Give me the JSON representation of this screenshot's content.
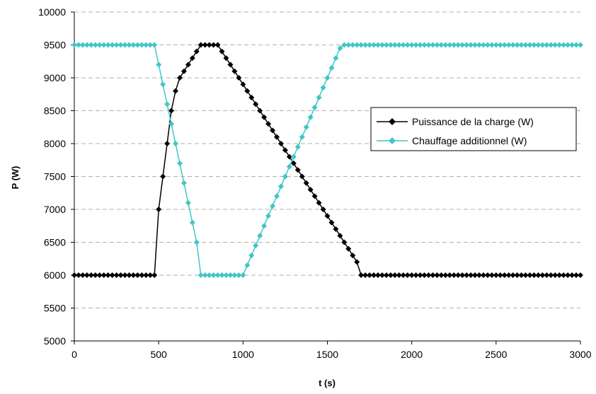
{
  "chart_data": {
    "type": "line",
    "title": "",
    "xlabel": "t (s)",
    "ylabel": "P (W)",
    "xlim": [
      0,
      3000
    ],
    "ylim": [
      5000,
      10000
    ],
    "x_ticks": [
      0,
      500,
      1000,
      1500,
      2000,
      2500,
      3000
    ],
    "y_ticks": [
      5000,
      5500,
      6000,
      6500,
      7000,
      7500,
      8000,
      8500,
      9000,
      9500,
      10000
    ],
    "grid": "horizontal dashed",
    "legend_position": "right",
    "series": [
      {
        "name": "Puissance de la charge (W)",
        "color": "#000000",
        "marker": "diamond",
        "points": [
          [
            0,
            6000
          ],
          [
            25,
            6000
          ],
          [
            50,
            6000
          ],
          [
            75,
            6000
          ],
          [
            100,
            6000
          ],
          [
            125,
            6000
          ],
          [
            150,
            6000
          ],
          [
            175,
            6000
          ],
          [
            200,
            6000
          ],
          [
            225,
            6000
          ],
          [
            250,
            6000
          ],
          [
            275,
            6000
          ],
          [
            300,
            6000
          ],
          [
            325,
            6000
          ],
          [
            350,
            6000
          ],
          [
            375,
            6000
          ],
          [
            400,
            6000
          ],
          [
            425,
            6000
          ],
          [
            450,
            6000
          ],
          [
            475,
            6000
          ],
          [
            500,
            7000
          ],
          [
            525,
            7500
          ],
          [
            550,
            8000
          ],
          [
            575,
            8500
          ],
          [
            600,
            8800
          ],
          [
            625,
            9000
          ],
          [
            650,
            9100
          ],
          [
            675,
            9200
          ],
          [
            700,
            9300
          ],
          [
            725,
            9400
          ],
          [
            750,
            9500
          ],
          [
            775,
            9500
          ],
          [
            800,
            9500
          ],
          [
            825,
            9500
          ],
          [
            850,
            9500
          ],
          [
            875,
            9400
          ],
          [
            900,
            9300
          ],
          [
            925,
            9200
          ],
          [
            950,
            9100
          ],
          [
            975,
            9000
          ],
          [
            1000,
            8900
          ],
          [
            1025,
            8800
          ],
          [
            1050,
            8700
          ],
          [
            1075,
            8600
          ],
          [
            1100,
            8500
          ],
          [
            1125,
            8400
          ],
          [
            1150,
            8300
          ],
          [
            1175,
            8200
          ],
          [
            1200,
            8100
          ],
          [
            1225,
            8000
          ],
          [
            1250,
            7900
          ],
          [
            1275,
            7800
          ],
          [
            1300,
            7700
          ],
          [
            1325,
            7600
          ],
          [
            1350,
            7500
          ],
          [
            1375,
            7400
          ],
          [
            1400,
            7300
          ],
          [
            1425,
            7200
          ],
          [
            1450,
            7100
          ],
          [
            1475,
            7000
          ],
          [
            1500,
            6900
          ],
          [
            1525,
            6800
          ],
          [
            1550,
            6700
          ],
          [
            1575,
            6600
          ],
          [
            1600,
            6500
          ],
          [
            1625,
            6400
          ],
          [
            1650,
            6300
          ],
          [
            1675,
            6200
          ],
          [
            1700,
            6000
          ],
          [
            1725,
            6000
          ],
          [
            1750,
            6000
          ],
          [
            1775,
            6000
          ],
          [
            1800,
            6000
          ],
          [
            1825,
            6000
          ],
          [
            1850,
            6000
          ],
          [
            1875,
            6000
          ],
          [
            1900,
            6000
          ],
          [
            1925,
            6000
          ],
          [
            1950,
            6000
          ],
          [
            1975,
            6000
          ],
          [
            2000,
            6000
          ],
          [
            2025,
            6000
          ],
          [
            2050,
            6000
          ],
          [
            2075,
            6000
          ],
          [
            2100,
            6000
          ],
          [
            2125,
            6000
          ],
          [
            2150,
            6000
          ],
          [
            2175,
            6000
          ],
          [
            2200,
            6000
          ],
          [
            2225,
            6000
          ],
          [
            2250,
            6000
          ],
          [
            2275,
            6000
          ],
          [
            2300,
            6000
          ],
          [
            2325,
            6000
          ],
          [
            2350,
            6000
          ],
          [
            2375,
            6000
          ],
          [
            2400,
            6000
          ],
          [
            2425,
            6000
          ],
          [
            2450,
            6000
          ],
          [
            2475,
            6000
          ],
          [
            2500,
            6000
          ],
          [
            2525,
            6000
          ],
          [
            2550,
            6000
          ],
          [
            2575,
            6000
          ],
          [
            2600,
            6000
          ],
          [
            2625,
            6000
          ],
          [
            2650,
            6000
          ],
          [
            2675,
            6000
          ],
          [
            2700,
            6000
          ],
          [
            2725,
            6000
          ],
          [
            2750,
            6000
          ],
          [
            2775,
            6000
          ],
          [
            2800,
            6000
          ],
          [
            2825,
            6000
          ],
          [
            2850,
            6000
          ],
          [
            2875,
            6000
          ],
          [
            2900,
            6000
          ],
          [
            2925,
            6000
          ],
          [
            2950,
            6000
          ],
          [
            2975,
            6000
          ],
          [
            3000,
            6000
          ]
        ]
      },
      {
        "name": "Chauffage additionnel (W)",
        "color": "#3fc6c6",
        "marker": "diamond",
        "points": [
          [
            0,
            9500
          ],
          [
            25,
            9500
          ],
          [
            50,
            9500
          ],
          [
            75,
            9500
          ],
          [
            100,
            9500
          ],
          [
            125,
            9500
          ],
          [
            150,
            9500
          ],
          [
            175,
            9500
          ],
          [
            200,
            9500
          ],
          [
            225,
            9500
          ],
          [
            250,
            9500
          ],
          [
            275,
            9500
          ],
          [
            300,
            9500
          ],
          [
            325,
            9500
          ],
          [
            350,
            9500
          ],
          [
            375,
            9500
          ],
          [
            400,
            9500
          ],
          [
            425,
            9500
          ],
          [
            450,
            9500
          ],
          [
            475,
            9500
          ],
          [
            500,
            9200
          ],
          [
            525,
            8900
          ],
          [
            550,
            8600
          ],
          [
            575,
            8300
          ],
          [
            600,
            8000
          ],
          [
            625,
            7700
          ],
          [
            650,
            7400
          ],
          [
            675,
            7100
          ],
          [
            700,
            6800
          ],
          [
            725,
            6500
          ],
          [
            750,
            6000
          ],
          [
            775,
            6000
          ],
          [
            800,
            6000
          ],
          [
            825,
            6000
          ],
          [
            850,
            6000
          ],
          [
            875,
            6000
          ],
          [
            900,
            6000
          ],
          [
            925,
            6000
          ],
          [
            950,
            6000
          ],
          [
            975,
            6000
          ],
          [
            1000,
            6000
          ],
          [
            1025,
            6150
          ],
          [
            1050,
            6300
          ],
          [
            1075,
            6450
          ],
          [
            1100,
            6600
          ],
          [
            1125,
            6750
          ],
          [
            1150,
            6900
          ],
          [
            1175,
            7050
          ],
          [
            1200,
            7200
          ],
          [
            1225,
            7350
          ],
          [
            1250,
            7500
          ],
          [
            1275,
            7650
          ],
          [
            1300,
            7800
          ],
          [
            1325,
            7950
          ],
          [
            1350,
            8100
          ],
          [
            1375,
            8250
          ],
          [
            1400,
            8400
          ],
          [
            1425,
            8550
          ],
          [
            1450,
            8700
          ],
          [
            1475,
            8850
          ],
          [
            1500,
            9000
          ],
          [
            1525,
            9150
          ],
          [
            1550,
            9300
          ],
          [
            1575,
            9450
          ],
          [
            1600,
            9500
          ],
          [
            1625,
            9500
          ],
          [
            1650,
            9500
          ],
          [
            1675,
            9500
          ],
          [
            1700,
            9500
          ],
          [
            1725,
            9500
          ],
          [
            1750,
            9500
          ],
          [
            1775,
            9500
          ],
          [
            1800,
            9500
          ],
          [
            1825,
            9500
          ],
          [
            1850,
            9500
          ],
          [
            1875,
            9500
          ],
          [
            1900,
            9500
          ],
          [
            1925,
            9500
          ],
          [
            1950,
            9500
          ],
          [
            1975,
            9500
          ],
          [
            2000,
            9500
          ],
          [
            2025,
            9500
          ],
          [
            2050,
            9500
          ],
          [
            2075,
            9500
          ],
          [
            2100,
            9500
          ],
          [
            2125,
            9500
          ],
          [
            2150,
            9500
          ],
          [
            2175,
            9500
          ],
          [
            2200,
            9500
          ],
          [
            2225,
            9500
          ],
          [
            2250,
            9500
          ],
          [
            2275,
            9500
          ],
          [
            2300,
            9500
          ],
          [
            2325,
            9500
          ],
          [
            2350,
            9500
          ],
          [
            2375,
            9500
          ],
          [
            2400,
            9500
          ],
          [
            2425,
            9500
          ],
          [
            2450,
            9500
          ],
          [
            2475,
            9500
          ],
          [
            2500,
            9500
          ],
          [
            2525,
            9500
          ],
          [
            2550,
            9500
          ],
          [
            2575,
            9500
          ],
          [
            2600,
            9500
          ],
          [
            2625,
            9500
          ],
          [
            2650,
            9500
          ],
          [
            2675,
            9500
          ],
          [
            2700,
            9500
          ],
          [
            2725,
            9500
          ],
          [
            2750,
            9500
          ],
          [
            2775,
            9500
          ],
          [
            2800,
            9500
          ],
          [
            2825,
            9500
          ],
          [
            2850,
            9500
          ],
          [
            2875,
            9500
          ],
          [
            2900,
            9500
          ],
          [
            2925,
            9500
          ],
          [
            2950,
            9500
          ],
          [
            2975,
            9500
          ],
          [
            3000,
            9500
          ]
        ]
      }
    ]
  }
}
